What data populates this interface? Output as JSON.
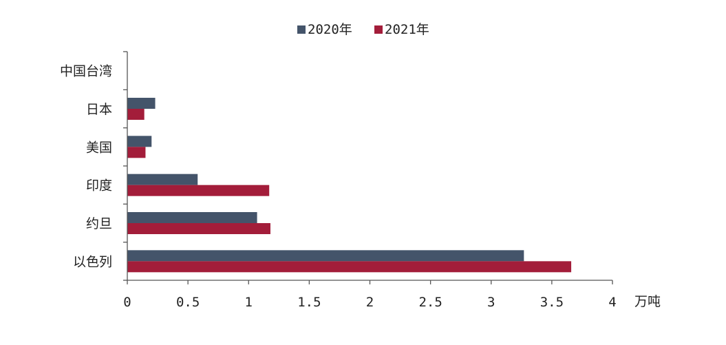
{
  "chart_data": {
    "type": "bar",
    "orientation": "horizontal",
    "categories": [
      "中国台湾",
      "日本",
      "美国",
      "印度",
      "约旦",
      "以色列"
    ],
    "series": [
      {
        "name": "2020年",
        "color": "#44546a",
        "values": [
          0,
          0.23,
          0.2,
          0.58,
          1.07,
          3.27
        ]
      },
      {
        "name": "2021年",
        "color": "#a31d3a",
        "values": [
          0,
          0.14,
          0.15,
          1.17,
          1.18,
          3.66
        ]
      }
    ],
    "xlim": [
      0,
      4
    ],
    "xticks": [
      0,
      0.5,
      1,
      1.5,
      2,
      2.5,
      3,
      3.5,
      4
    ],
    "xtick_labels": [
      "0",
      "0.5",
      "1",
      "1.5",
      "2",
      "2.5",
      "3",
      "3.5",
      "4"
    ],
    "xlabel": "万吨",
    "legend_position": "top",
    "grid": false
  }
}
